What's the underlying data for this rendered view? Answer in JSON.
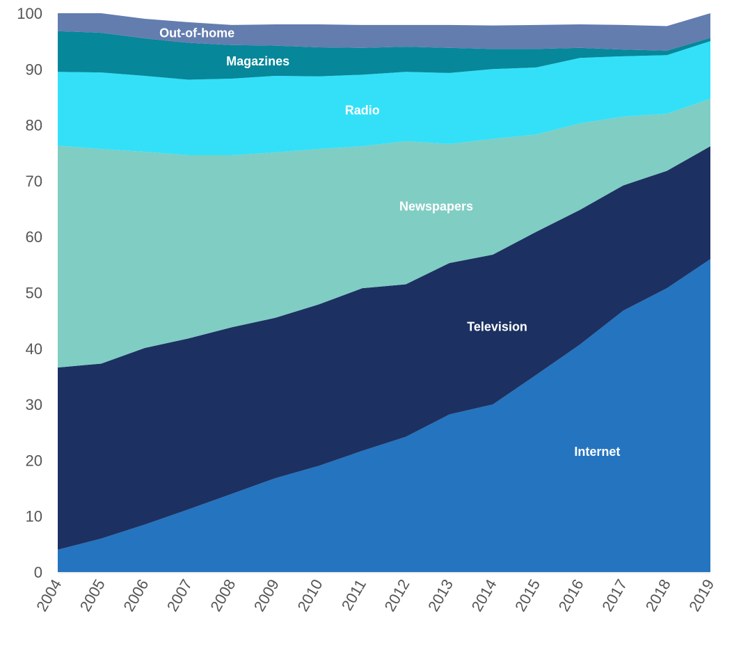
{
  "chart_data": {
    "type": "area",
    "stacked": true,
    "title": "",
    "xlabel": "",
    "ylabel": "",
    "ylim": [
      0,
      100
    ],
    "yticks": [
      0,
      10,
      20,
      30,
      40,
      50,
      60,
      70,
      80,
      90,
      100
    ],
    "x": [
      "2004",
      "2005",
      "2006",
      "2007",
      "2008",
      "2009",
      "2010",
      "2011",
      "2012",
      "2013",
      "2014",
      "2015",
      "2016",
      "2017",
      "2018",
      "2019"
    ],
    "legend": "inline",
    "grid": false,
    "series": [
      {
        "name": "Internet",
        "color": "#2574bf",
        "values": [
          4,
          6,
          8.5,
          11.2,
          14,
          16.8,
          19,
          21.7,
          24.2,
          28.2,
          30,
          35.3,
          40.7,
          46.8,
          50.8,
          56
        ]
      },
      {
        "name": "Television",
        "color": "#1c3161",
        "values": [
          32.6,
          31.3,
          31.6,
          30.6,
          29.8,
          28.7,
          28.9,
          29.1,
          27.3,
          27.1,
          26.8,
          25.6,
          24.1,
          22.4,
          21,
          20.2
        ]
      },
      {
        "name": "Newspapers",
        "color": "#80cdc3",
        "values": [
          39.7,
          38.4,
          35.1,
          32.8,
          30.8,
          29.6,
          27.8,
          25.4,
          25.6,
          21.3,
          20.7,
          17.4,
          15.5,
          12.3,
          10.2,
          8.5
        ]
      },
      {
        "name": "Radio",
        "color": "#33e0f8",
        "values": [
          13.2,
          13.7,
          13.6,
          13.5,
          13.7,
          13.7,
          13,
          12.8,
          12.4,
          12.7,
          12.5,
          12,
          11.7,
          10.8,
          10.5,
          10.3
        ]
      },
      {
        "name": "Magazines",
        "color": "#07879a",
        "values": [
          7.3,
          7.1,
          6.7,
          6.6,
          6,
          5.4,
          5.2,
          4.8,
          4.5,
          4.5,
          3.6,
          3.3,
          1.8,
          1.2,
          0.8,
          0.6
        ]
      },
      {
        "name": "Out-of-home",
        "color": "#637daf",
        "values": [
          3.2,
          3.5,
          3.5,
          3.7,
          3.6,
          3.8,
          4.1,
          4.1,
          3.9,
          4.1,
          4.2,
          4.3,
          4.2,
          4.4,
          4.4,
          4.4
        ]
      }
    ],
    "label_text_color": "#ffffff",
    "tick_text_color": "#555555"
  }
}
